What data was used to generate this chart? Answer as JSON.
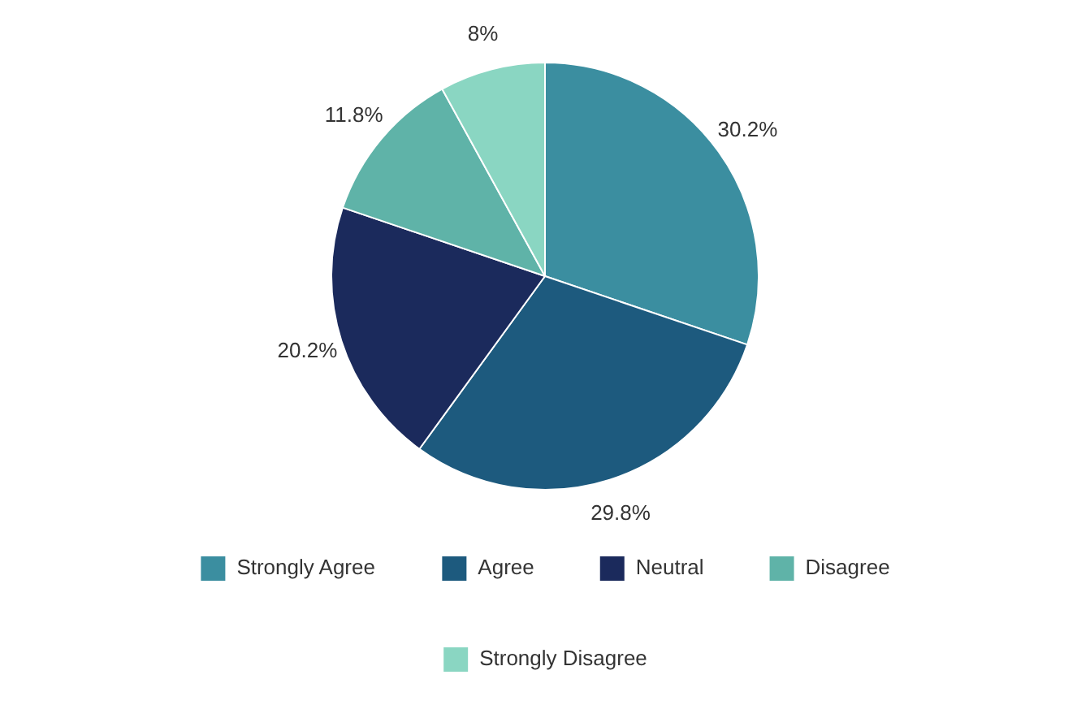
{
  "chart_data": {
    "type": "pie",
    "categories": [
      "Strongly Agree",
      "Agree",
      "Neutral",
      "Disagree",
      "Strongly Disagree"
    ],
    "values": [
      30.2,
      29.8,
      20.2,
      11.8,
      8
    ],
    "colors": [
      "#3b8ea0",
      "#1d5a7e",
      "#1b2a5c",
      "#5fb3a8",
      "#8ad6c2"
    ],
    "value_labels": [
      "30.2%",
      "29.8%",
      "20.2%",
      "11.8%",
      "8%"
    ],
    "legend": "bottom"
  }
}
